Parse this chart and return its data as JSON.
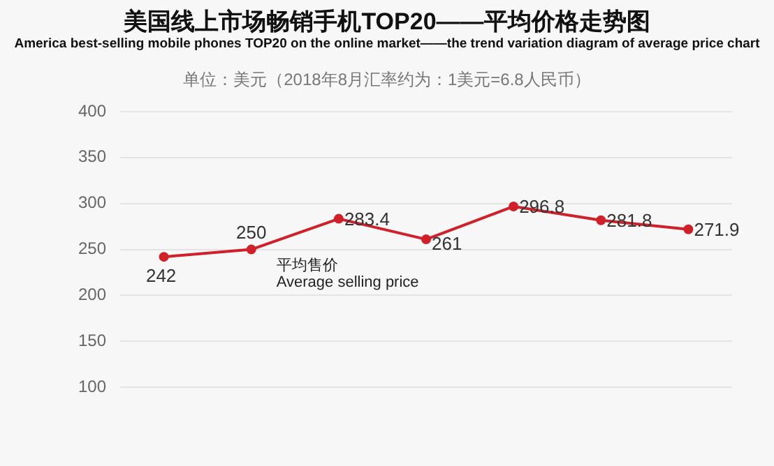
{
  "chart_data": {
    "type": "line",
    "title": "美国线上市场畅销手机TOP20——平均价格走势图",
    "subtitle": "America best-selling mobile phones TOP20 on the online market——the trend variation diagram of average price chart",
    "annotations": [
      "单位：美元（2018年8月汇率约为：1美元=6.8人民币）"
    ],
    "categories": [
      null,
      null,
      null,
      null,
      null,
      null,
      null
    ],
    "series": [
      {
        "name": "平均售价\nAverage selling price",
        "color": "#d0202a",
        "values": [
          242,
          250,
          283.4,
          261,
          296.8,
          281.8,
          271.9
        ]
      }
    ],
    "ylim": [
      100,
      400
    ],
    "yticks": [
      100,
      150,
      200,
      250,
      300,
      350,
      400
    ],
    "grid": "y",
    "legend": false,
    "marker": "circle",
    "line_style": "solid",
    "data_labels": true
  }
}
